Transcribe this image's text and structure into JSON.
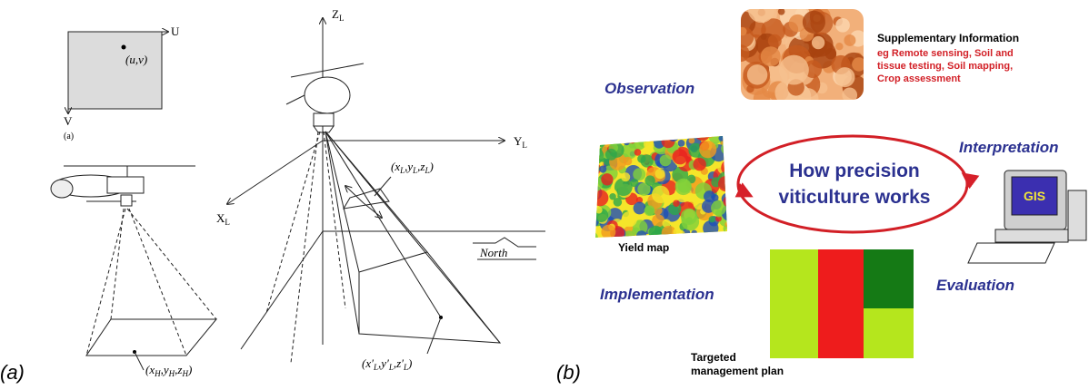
{
  "panel_a": {
    "image_plane": {
      "u_axis": "U",
      "v_axis": "V",
      "point": "(u,v)",
      "caption": "(a)"
    },
    "axes": {
      "z": [
        "Z",
        "L"
      ],
      "y": [
        "Y",
        "L"
      ],
      "x": [
        "X",
        "L"
      ]
    },
    "camera_point": [
      "(x",
      "L",
      ",y",
      "L",
      ",z",
      "L",
      ")"
    ],
    "ground_point": [
      "(x′",
      "L",
      ",y′",
      "L",
      ",z′",
      "L",
      ")"
    ],
    "heli_point": [
      "(x",
      "H",
      ",y",
      "H",
      ",z",
      "H",
      ")"
    ],
    "north": "North",
    "label": "(a)"
  },
  "panel_b": {
    "center": [
      "How precision",
      "viticulture works"
    ],
    "observation": "Observation",
    "interpretation": "Interpretation",
    "implementation": "Implementation",
    "evaluation": "Evaluation",
    "supplementary": {
      "title": "Supplementary Information",
      "lines": [
        "eg Remote sensing, Soil and",
        "tissue testing, Soil mapping,",
        "Crop assessment"
      ]
    },
    "yield_map": "Yield map",
    "gis": "GIS",
    "plan": [
      "Targeted",
      "management plan"
    ],
    "label": "(b)"
  }
}
